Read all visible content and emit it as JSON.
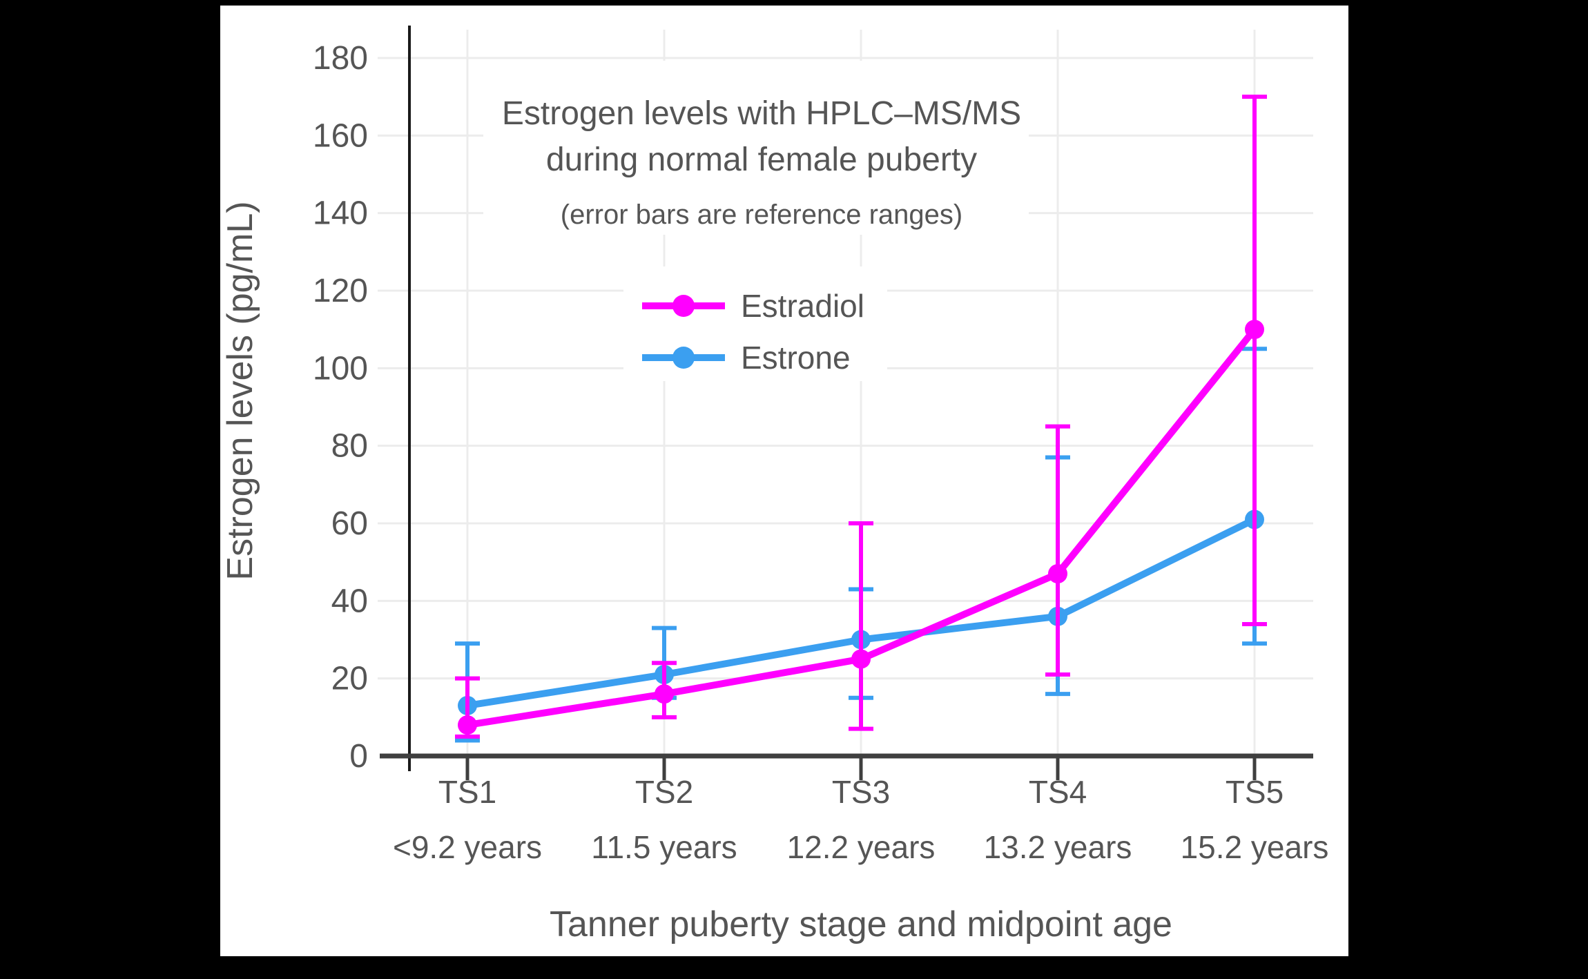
{
  "window": {
    "outer_bg": "#000000",
    "canvas_bg": "#ffffff"
  },
  "chart_data": {
    "type": "line",
    "title_line1": "Estrogen levels with HPLC–MS/MS",
    "title_line2": "during normal female puberty",
    "subtitle": "(error bars are reference ranges)",
    "xlabel": "Tanner puberty stage and midpoint age",
    "ylabel": "Estrogen levels (pg/mL)",
    "categories": [
      "TS1",
      "TS2",
      "TS3",
      "TS4",
      "TS5"
    ],
    "category_ages": [
      "<9.2 years",
      "11.5 years",
      "12.2 years",
      "13.2 years",
      "15.2 years"
    ],
    "y_ticks": [
      0,
      20,
      40,
      60,
      80,
      100,
      120,
      140,
      160,
      180
    ],
    "ylim": [
      0,
      188
    ],
    "grid": true,
    "legend_position": "inside-upper-left",
    "error_bars": "reference ranges",
    "series": [
      {
        "name": "Estradiol",
        "color": "#FF00FF",
        "values": [
          8,
          16,
          25,
          47,
          110
        ],
        "range_low": [
          5,
          10,
          7,
          21,
          34
        ],
        "range_high": [
          20,
          24,
          60,
          85,
          170
        ]
      },
      {
        "name": "Estrone",
        "color": "#3B9FF0",
        "values": [
          13,
          21,
          30,
          36,
          61
        ],
        "range_low": [
          4,
          15,
          15,
          16,
          29
        ],
        "range_high": [
          29,
          33,
          43,
          77,
          105
        ]
      }
    ],
    "colors": {
      "grid": "#ECECEC",
      "axis_y": "#1A1A1A",
      "axis_x": "#3F3F3F",
      "text": "#555555"
    }
  }
}
